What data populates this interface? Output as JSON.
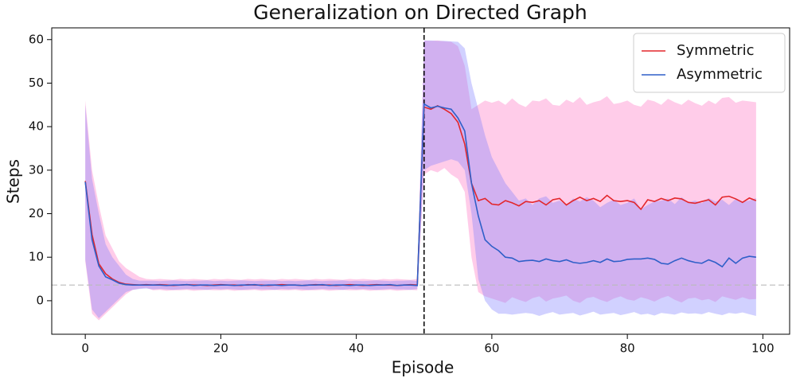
{
  "chart_data": {
    "type": "line",
    "title": "Generalization on Directed Graph",
    "xlabel": "Episode",
    "ylabel": "Steps",
    "xlim": [
      -4.95,
      103.95
    ],
    "ylim": [
      -7.7,
      62.7
    ],
    "xticks": [
      0,
      20,
      40,
      60,
      80,
      100
    ],
    "yticks": [
      0,
      10,
      20,
      30,
      40,
      50,
      60
    ],
    "legend": "upper right",
    "vline": 50,
    "hline": 3.6,
    "band_opacity": 0.35,
    "x": [
      0,
      1,
      2,
      3,
      4,
      5,
      6,
      7,
      8,
      9,
      10,
      11,
      12,
      13,
      14,
      15,
      16,
      17,
      18,
      19,
      20,
      21,
      22,
      23,
      24,
      25,
      26,
      27,
      28,
      29,
      30,
      31,
      32,
      33,
      34,
      35,
      36,
      37,
      38,
      39,
      40,
      41,
      42,
      43,
      44,
      45,
      46,
      47,
      48,
      49,
      50,
      51,
      52,
      53,
      54,
      55,
      56,
      57,
      58,
      59,
      60,
      61,
      62,
      63,
      64,
      65,
      66,
      67,
      68,
      69,
      70,
      71,
      72,
      73,
      74,
      75,
      76,
      77,
      78,
      79,
      80,
      81,
      82,
      83,
      84,
      85,
      86,
      87,
      88,
      89,
      90,
      91,
      92,
      93,
      94,
      95,
      96,
      97,
      98,
      99
    ],
    "series": [
      {
        "name": "Symmetric",
        "color": "#e3262b",
        "band_color": "#ff6ec0",
        "values": [
          27.5,
          15.2,
          8.5,
          6.2,
          5.0,
          4.2,
          3.8,
          3.7,
          3.6,
          3.7,
          3.6,
          3.7,
          3.6,
          3.5,
          3.6,
          3.7,
          3.6,
          3.6,
          3.5,
          3.6,
          3.7,
          3.6,
          3.6,
          3.5,
          3.7,
          3.6,
          3.6,
          3.5,
          3.6,
          3.7,
          3.6,
          3.6,
          3.5,
          3.6,
          3.7,
          3.6,
          3.6,
          3.5,
          3.6,
          3.7,
          3.6,
          3.5,
          3.6,
          3.7,
          3.6,
          3.6,
          3.5,
          3.6,
          3.7,
          3.6,
          44.5,
          44.0,
          44.8,
          44.0,
          43.0,
          41.0,
          36.0,
          27.0,
          23.0,
          23.5,
          22.2,
          22.0,
          23.0,
          22.5,
          21.8,
          22.8,
          22.6,
          23.0,
          22.0,
          23.2,
          23.5,
          22.0,
          23.0,
          23.8,
          23.0,
          23.5,
          22.8,
          24.2,
          23.0,
          22.8,
          23.0,
          22.6,
          21.0,
          23.2,
          22.8,
          23.5,
          23.0,
          23.6,
          23.4,
          22.6,
          22.4,
          22.8,
          23.2,
          22.0,
          23.8,
          24.0,
          23.4,
          22.6,
          23.6,
          23.0
        ],
        "lower": [
          9.0,
          -3.0,
          -4.5,
          -3.0,
          -1.5,
          0.0,
          1.5,
          2.5,
          2.8,
          3.0,
          2.4,
          2.5,
          2.3,
          2.4,
          2.4,
          2.5,
          2.3,
          2.4,
          2.5,
          2.4,
          2.4,
          2.5,
          2.3,
          2.4,
          2.4,
          2.5,
          2.3,
          2.4,
          2.5,
          2.4,
          2.4,
          2.5,
          2.3,
          2.4,
          2.4,
          2.5,
          2.3,
          2.4,
          2.5,
          2.4,
          2.4,
          2.5,
          2.3,
          2.4,
          2.4,
          2.5,
          2.3,
          2.4,
          2.5,
          2.4,
          29.0,
          30.0,
          29.5,
          30.5,
          29.0,
          28.0,
          25.0,
          10.0,
          2.0,
          1.0,
          0.5,
          0.0,
          -0.5,
          0.8,
          0.2,
          -0.3,
          0.6,
          1.0,
          -0.2,
          0.5,
          0.8,
          1.2,
          0.0,
          -0.5,
          0.6,
          0.9,
          0.2,
          -0.3,
          0.5,
          1.0,
          0.3,
          0.0,
          0.8,
          0.4,
          -0.2,
          0.6,
          1.1,
          0.2,
          -0.4,
          0.5,
          0.7,
          0.1,
          0.4,
          -0.3,
          1.0,
          0.6,
          0.2,
          0.8,
          0.3,
          0.4
        ],
        "upper": [
          46.0,
          30.0,
          22.0,
          15.0,
          12.0,
          9.0,
          7.5,
          6.5,
          5.5,
          5.0,
          4.9,
          5.0,
          4.9,
          4.8,
          5.0,
          4.9,
          5.0,
          4.9,
          4.8,
          5.0,
          4.9,
          5.0,
          4.9,
          4.8,
          5.0,
          4.9,
          5.0,
          4.9,
          4.8,
          5.0,
          4.9,
          5.0,
          4.9,
          4.8,
          5.0,
          4.9,
          5.0,
          4.9,
          4.8,
          5.0,
          4.9,
          5.0,
          4.9,
          4.8,
          5.0,
          4.9,
          5.0,
          4.9,
          4.8,
          5.0,
          59.8,
          59.7,
          59.8,
          59.6,
          59.5,
          58.5,
          54.0,
          44.0,
          45.0,
          46.0,
          45.5,
          46.0,
          45.0,
          46.5,
          45.2,
          44.5,
          46.0,
          45.8,
          46.5,
          45.0,
          44.8,
          46.2,
          45.5,
          46.8,
          45.0,
          45.6,
          46.0,
          47.0,
          45.2,
          45.5,
          46.0,
          45.0,
          44.6,
          46.2,
          45.8,
          45.0,
          46.4,
          45.6,
          45.0,
          46.2,
          45.4,
          44.8,
          46.0,
          45.2,
          46.6,
          46.8,
          45.5,
          46.0,
          45.8,
          45.6
        ]
      },
      {
        "name": "Asymmetric",
        "color": "#2f5fc8",
        "band_color": "#7c7cff",
        "values": [
          27.3,
          14.0,
          8.0,
          5.5,
          4.8,
          4.0,
          3.7,
          3.6,
          3.6,
          3.6,
          3.6,
          3.6,
          3.5,
          3.6,
          3.6,
          3.7,
          3.5,
          3.6,
          3.6,
          3.5,
          3.6,
          3.6,
          3.5,
          3.6,
          3.6,
          3.7,
          3.5,
          3.6,
          3.6,
          3.5,
          3.6,
          3.6,
          3.5,
          3.6,
          3.6,
          3.7,
          3.5,
          3.6,
          3.6,
          3.5,
          3.6,
          3.6,
          3.5,
          3.6,
          3.6,
          3.7,
          3.5,
          3.6,
          3.6,
          3.5,
          45.2,
          44.3,
          44.7,
          44.3,
          44.0,
          42.0,
          39.0,
          27.0,
          19.5,
          14.0,
          12.5,
          11.5,
          10.0,
          9.8,
          9.0,
          9.2,
          9.3,
          9.0,
          9.6,
          9.2,
          9.0,
          9.4,
          8.8,
          8.6,
          8.8,
          9.2,
          8.8,
          9.6,
          9.0,
          9.1,
          9.5,
          9.6,
          9.6,
          9.8,
          9.5,
          8.6,
          8.4,
          9.2,
          9.8,
          9.2,
          8.8,
          8.6,
          9.4,
          8.8,
          7.8,
          9.8,
          8.6,
          9.8,
          10.2,
          10.0
        ],
        "lower": [
          9.5,
          -2.0,
          -4.0,
          -2.5,
          -1.0,
          0.5,
          2.0,
          2.5,
          2.7,
          2.8,
          2.6,
          2.7,
          2.6,
          2.5,
          2.6,
          2.7,
          2.6,
          2.6,
          2.5,
          2.7,
          2.6,
          2.7,
          2.6,
          2.5,
          2.6,
          2.7,
          2.6,
          2.6,
          2.5,
          2.7,
          2.6,
          2.7,
          2.6,
          2.5,
          2.6,
          2.7,
          2.6,
          2.6,
          2.5,
          2.7,
          2.6,
          2.7,
          2.6,
          2.5,
          2.6,
          2.7,
          2.6,
          2.6,
          2.5,
          2.7,
          30.0,
          31.0,
          31.5,
          32.0,
          32.5,
          32.0,
          30.0,
          20.0,
          5.0,
          0.0,
          -2.0,
          -3.0,
          -3.0,
          -3.2,
          -3.0,
          -2.8,
          -3.0,
          -3.5,
          -3.0,
          -2.6,
          -3.2,
          -3.0,
          -2.8,
          -3.4,
          -3.0,
          -2.5,
          -3.2,
          -3.0,
          -2.8,
          -3.3,
          -3.0,
          -2.6,
          -3.2,
          -3.0,
          -3.4,
          -2.8,
          -3.0,
          -3.2,
          -2.7,
          -3.0,
          -2.9,
          -3.1,
          -2.6,
          -3.0,
          -3.3,
          -2.8,
          -3.0,
          -2.7,
          -3.1,
          -3.5
        ],
        "upper": [
          45.0,
          28.0,
          20.0,
          13.0,
          10.0,
          8.0,
          6.0,
          5.0,
          4.6,
          4.6,
          4.6,
          4.5,
          4.6,
          4.7,
          4.6,
          4.5,
          4.6,
          4.6,
          4.7,
          4.5,
          4.6,
          4.5,
          4.6,
          4.7,
          4.6,
          4.5,
          4.6,
          4.6,
          4.7,
          4.5,
          4.6,
          4.5,
          4.6,
          4.7,
          4.6,
          4.5,
          4.6,
          4.6,
          4.7,
          4.5,
          4.6,
          4.5,
          4.6,
          4.7,
          4.6,
          4.5,
          4.6,
          4.6,
          4.7,
          4.5,
          59.8,
          59.8,
          59.7,
          59.7,
          59.6,
          59.5,
          58.0,
          50.0,
          44.0,
          38.0,
          33.0,
          30.0,
          27.0,
          25.0,
          23.0,
          23.5,
          22.0,
          23.5,
          24.0,
          22.5,
          23.0,
          22.0,
          23.5,
          22.8,
          23.8,
          23.0,
          21.5,
          22.5,
          23.2,
          22.0,
          22.5,
          23.5,
          21.0,
          22.0,
          22.8,
          23.0,
          23.5,
          22.2,
          23.8,
          22.6,
          23.0,
          22.4,
          23.6,
          22.8,
          23.2,
          22.0,
          23.4,
          22.8,
          23.0,
          23.6
        ]
      }
    ]
  }
}
